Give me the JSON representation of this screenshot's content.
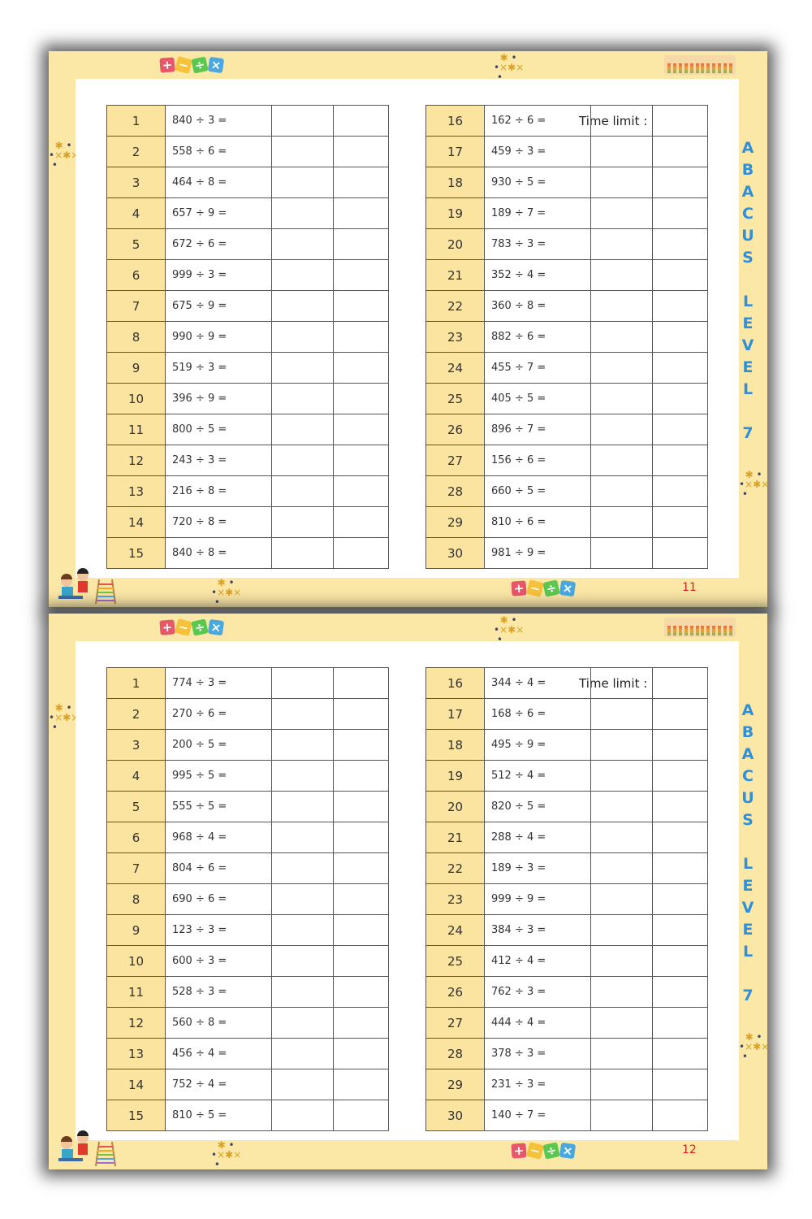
{
  "time_limit_label": "Time limit :",
  "side_title": "ABACUS LEVEL 7",
  "colors": {
    "page_bg": "#fbe7a6",
    "number_cell": "#fbe3a0",
    "side_title": "#2f8fd8",
    "page_number": "#d81e1e"
  },
  "icons": [
    "math-operators-tiles-icon",
    "abacus-icon",
    "sparkles-icon",
    "kids-with-abacus-icon"
  ],
  "operator_tiles": [
    "+",
    "−",
    "÷",
    "×"
  ],
  "pages": [
    {
      "page_number": "11",
      "left_table": [
        {
          "n": "1",
          "p": "840 ÷ 3 ="
        },
        {
          "n": "2",
          "p": "558 ÷ 6 ="
        },
        {
          "n": "3",
          "p": "464 ÷ 8 ="
        },
        {
          "n": "4",
          "p": "657 ÷ 9 ="
        },
        {
          "n": "5",
          "p": "672 ÷ 6 ="
        },
        {
          "n": "6",
          "p": "999 ÷ 3 ="
        },
        {
          "n": "7",
          "p": "675 ÷ 9 ="
        },
        {
          "n": "8",
          "p": "990 ÷ 9 ="
        },
        {
          "n": "9",
          "p": "519 ÷ 3 ="
        },
        {
          "n": "10",
          "p": "396 ÷ 9 ="
        },
        {
          "n": "11",
          "p": "800 ÷ 5 ="
        },
        {
          "n": "12",
          "p": "243 ÷ 3 ="
        },
        {
          "n": "13",
          "p": "216 ÷ 8 ="
        },
        {
          "n": "14",
          "p": "720 ÷ 8 ="
        },
        {
          "n": "15",
          "p": "840 ÷ 8 ="
        }
      ],
      "right_table": [
        {
          "n": "16",
          "p": "162 ÷ 6 ="
        },
        {
          "n": "17",
          "p": "459 ÷ 3 ="
        },
        {
          "n": "18",
          "p": "930 ÷ 5 ="
        },
        {
          "n": "19",
          "p": "189 ÷ 7 ="
        },
        {
          "n": "20",
          "p": "783 ÷ 3 ="
        },
        {
          "n": "21",
          "p": "352 ÷ 4 ="
        },
        {
          "n": "22",
          "p": "360 ÷ 8 ="
        },
        {
          "n": "23",
          "p": "882 ÷ 6 ="
        },
        {
          "n": "24",
          "p": "455 ÷ 7 ="
        },
        {
          "n": "25",
          "p": "405 ÷ 5 ="
        },
        {
          "n": "26",
          "p": "896 ÷ 7 ="
        },
        {
          "n": "27",
          "p": "156 ÷ 6 ="
        },
        {
          "n": "28",
          "p": "660 ÷ 5 ="
        },
        {
          "n": "29",
          "p": "810 ÷ 6 ="
        },
        {
          "n": "30",
          "p": "981 ÷ 9 ="
        }
      ]
    },
    {
      "page_number": "12",
      "left_table": [
        {
          "n": "1",
          "p": "774 ÷ 3 ="
        },
        {
          "n": "2",
          "p": "270 ÷ 6 ="
        },
        {
          "n": "3",
          "p": "200 ÷ 5 ="
        },
        {
          "n": "4",
          "p": "995 ÷ 5 ="
        },
        {
          "n": "5",
          "p": "555 ÷ 5 ="
        },
        {
          "n": "6",
          "p": "968 ÷ 4 ="
        },
        {
          "n": "7",
          "p": "804 ÷ 6 ="
        },
        {
          "n": "8",
          "p": "690 ÷ 6 ="
        },
        {
          "n": "9",
          "p": "123 ÷ 3 ="
        },
        {
          "n": "10",
          "p": "600 ÷ 3 ="
        },
        {
          "n": "11",
          "p": "528 ÷ 3 ="
        },
        {
          "n": "12",
          "p": "560 ÷ 8 ="
        },
        {
          "n": "13",
          "p": "456 ÷ 4 ="
        },
        {
          "n": "14",
          "p": "752 ÷ 4 ="
        },
        {
          "n": "15",
          "p": "810 ÷ 5 ="
        }
      ],
      "right_table": [
        {
          "n": "16",
          "p": "344 ÷ 4 ="
        },
        {
          "n": "17",
          "p": "168 ÷ 6 ="
        },
        {
          "n": "18",
          "p": "495 ÷ 9 ="
        },
        {
          "n": "19",
          "p": "512 ÷ 4 ="
        },
        {
          "n": "20",
          "p": "820 ÷ 5 ="
        },
        {
          "n": "21",
          "p": "288 ÷ 4 ="
        },
        {
          "n": "22",
          "p": "189 ÷ 3 ="
        },
        {
          "n": "23",
          "p": "999 ÷ 9 ="
        },
        {
          "n": "24",
          "p": "384 ÷ 3 ="
        },
        {
          "n": "25",
          "p": "412 ÷ 4 ="
        },
        {
          "n": "26",
          "p": "762 ÷ 3 ="
        },
        {
          "n": "27",
          "p": "444 ÷ 4 ="
        },
        {
          "n": "28",
          "p": "378 ÷ 3 ="
        },
        {
          "n": "29",
          "p": "231 ÷ 3 ="
        },
        {
          "n": "30",
          "p": "140 ÷ 7 ="
        }
      ]
    }
  ]
}
